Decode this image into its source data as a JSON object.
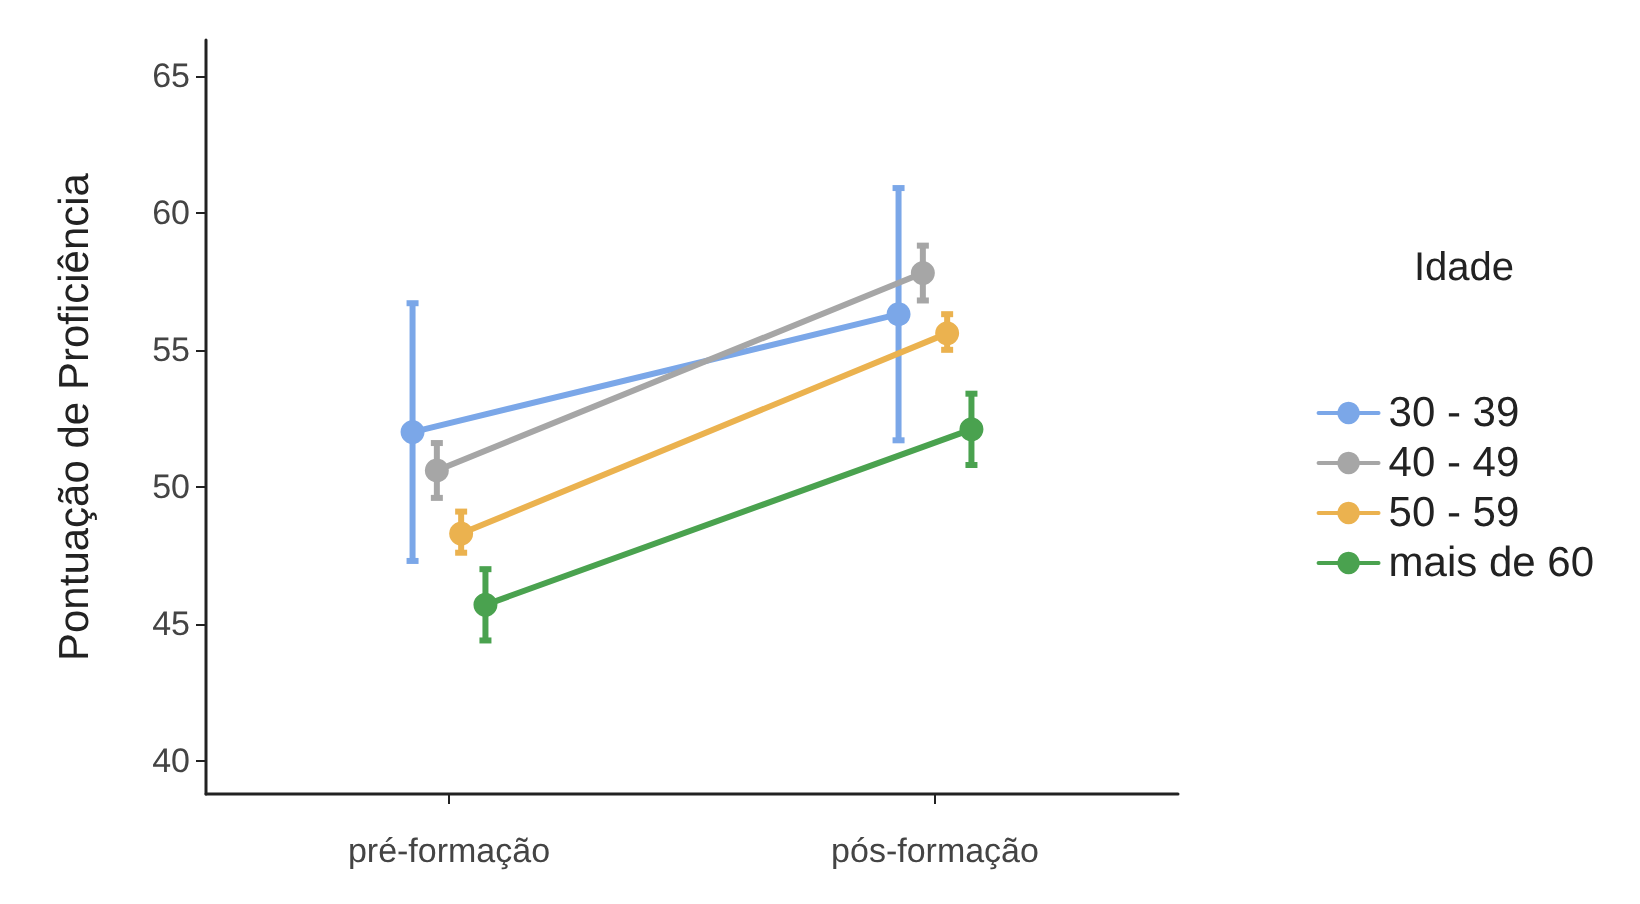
{
  "chart_data": {
    "type": "line",
    "ylabel": "Pontuação de Proficiência",
    "legend_title": "Idade",
    "categories": [
      "pré-formação",
      "pós-formação"
    ],
    "series": [
      {
        "name": "30 - 39",
        "color": "#7ba7e8",
        "values": [
          52.0,
          56.3
        ],
        "errors": [
          [
            47.3,
            56.7
          ],
          [
            51.7,
            60.9
          ]
        ]
      },
      {
        "name": "40 - 49",
        "color": "#a6a6a6",
        "values": [
          50.6,
          57.8
        ],
        "errors": [
          [
            49.6,
            51.6
          ],
          [
            56.8,
            58.8
          ]
        ]
      },
      {
        "name": "50 - 59",
        "color": "#ebb24f",
        "values": [
          48.3,
          55.6
        ],
        "errors": [
          [
            47.6,
            49.1
          ],
          [
            55.0,
            56.3
          ]
        ]
      },
      {
        "name": "mais de 60",
        "color": "#4aa24f",
        "values": [
          45.7,
          52.1
        ],
        "errors": [
          [
            44.4,
            47.0
          ],
          [
            50.8,
            53.4
          ]
        ]
      }
    ],
    "ylim": [
      38.8,
      66.3
    ],
    "yticks": [
      40,
      45,
      50,
      55,
      60,
      65
    ],
    "grid": false,
    "legend": "right",
    "marker": "circle",
    "line_style": "solid"
  }
}
